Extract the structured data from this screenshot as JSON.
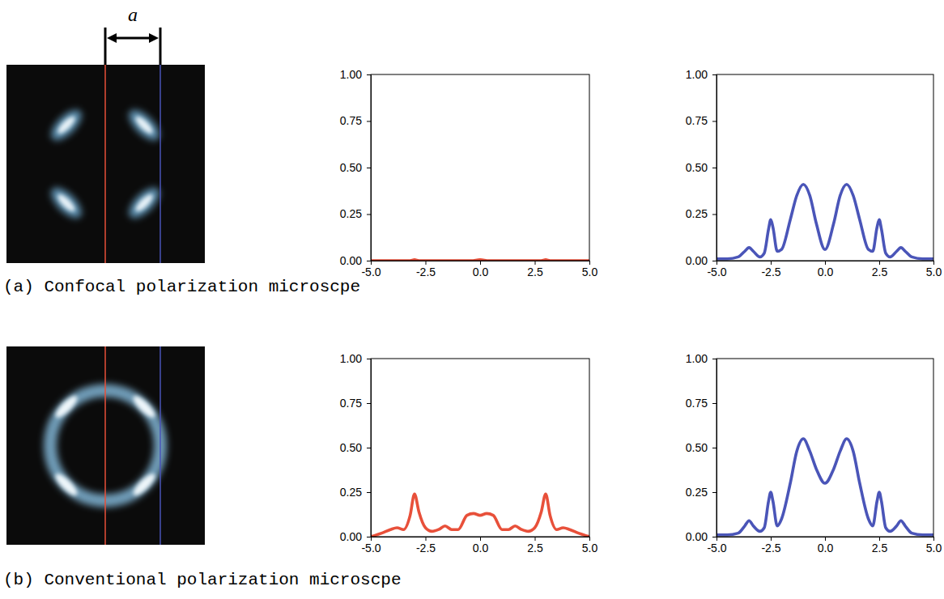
{
  "dimension_label": "a",
  "captions": [
    "(a) Confocal polarization microscpe",
    "(b) Conventional polarization microscpe"
  ],
  "chart_data": [
    {
      "type": "line",
      "x": [
        -5,
        -4,
        -3.2,
        -3,
        -2.8,
        -2,
        -0.4,
        0,
        0.4,
        2,
        2.8,
        3,
        3.2,
        4,
        5
      ],
      "series": [
        {
          "color": "#e8503a",
          "values": [
            0,
            0,
            0,
            0.005,
            0,
            0,
            0,
            0.005,
            0,
            0,
            0,
            0.005,
            0,
            0,
            0
          ]
        }
      ],
      "xlim": [
        -5,
        5
      ],
      "xticks": [
        {
          "value": -5,
          "label": "-5.0"
        },
        {
          "value": -2.5,
          "label": "-2.5"
        },
        {
          "value": 0,
          "label": "0.0"
        },
        {
          "value": 2.5,
          "label": "2.5"
        },
        {
          "value": 5,
          "label": "5.0"
        }
      ],
      "ylim": [
        0,
        1
      ],
      "yticks": [
        {
          "value": 0,
          "label": "0.00"
        },
        {
          "value": 0.25,
          "label": "0.25"
        },
        {
          "value": 0.5,
          "label": "0.50"
        },
        {
          "value": 0.75,
          "label": "0.75"
        },
        {
          "value": 1,
          "label": "1.00"
        }
      ],
      "grid": false
    },
    {
      "type": "line",
      "x": [
        -5,
        -4.5,
        -4,
        -3.7,
        -3.5,
        -3.3,
        -3,
        -2.8,
        -2.6,
        -2.5,
        -2.4,
        -2.2,
        -2,
        -1.6,
        -1.3,
        -1,
        -0.7,
        -0.4,
        0,
        0.4,
        0.7,
        1,
        1.3,
        1.6,
        2,
        2.2,
        2.4,
        2.5,
        2.6,
        2.8,
        3,
        3.3,
        3.5,
        3.7,
        4,
        4.5,
        5
      ],
      "series": [
        {
          "color": "#4a55b8",
          "values": [
            0.01,
            0.01,
            0.02,
            0.05,
            0.07,
            0.05,
            0.02,
            0.04,
            0.17,
            0.22,
            0.18,
            0.05,
            0.06,
            0.22,
            0.35,
            0.41,
            0.35,
            0.2,
            0.06,
            0.2,
            0.35,
            0.41,
            0.35,
            0.22,
            0.06,
            0.05,
            0.18,
            0.22,
            0.17,
            0.04,
            0.02,
            0.05,
            0.07,
            0.05,
            0.02,
            0.01,
            0.01
          ]
        }
      ],
      "xlim": [
        -5,
        5
      ],
      "xticks": [
        {
          "value": -5,
          "label": "-5.0"
        },
        {
          "value": -2.5,
          "label": "-2.5"
        },
        {
          "value": 0,
          "label": "0.0"
        },
        {
          "value": 2.5,
          "label": "2.5"
        },
        {
          "value": 5,
          "label": "5.0"
        }
      ],
      "ylim": [
        0,
        1
      ],
      "yticks": [
        {
          "value": 0,
          "label": "0.00"
        },
        {
          "value": 0.25,
          "label": "0.25"
        },
        {
          "value": 0.5,
          "label": "0.50"
        },
        {
          "value": 0.75,
          "label": "0.75"
        },
        {
          "value": 1,
          "label": "1.00"
        }
      ],
      "grid": false
    },
    {
      "type": "line",
      "x": [
        -5,
        -4.5,
        -4.1,
        -3.8,
        -3.5,
        -3.2,
        -3,
        -2.8,
        -2.5,
        -2.2,
        -1.9,
        -1.6,
        -1.3,
        -1,
        -0.6,
        -0.3,
        0,
        0.3,
        0.6,
        1,
        1.3,
        1.6,
        1.9,
        2.2,
        2.5,
        2.8,
        3,
        3.2,
        3.5,
        3.8,
        4.1,
        4.5,
        5
      ],
      "series": [
        {
          "color": "#e8503a",
          "values": [
            0,
            0.02,
            0.04,
            0.05,
            0.04,
            0.12,
            0.24,
            0.14,
            0.05,
            0.03,
            0.04,
            0.06,
            0.04,
            0.04,
            0.12,
            0.13,
            0.12,
            0.13,
            0.12,
            0.04,
            0.04,
            0.06,
            0.04,
            0.03,
            0.05,
            0.14,
            0.24,
            0.12,
            0.04,
            0.05,
            0.04,
            0.02,
            0
          ]
        }
      ],
      "xlim": [
        -5,
        5
      ],
      "xticks": [
        {
          "value": -5,
          "label": "-5.0"
        },
        {
          "value": -2.5,
          "label": "-2.5"
        },
        {
          "value": 0,
          "label": "0.0"
        },
        {
          "value": 2.5,
          "label": "2.5"
        },
        {
          "value": 5,
          "label": "5.0"
        }
      ],
      "ylim": [
        0,
        1
      ],
      "yticks": [
        {
          "value": 0,
          "label": "0.00"
        },
        {
          "value": 0.25,
          "label": "0.25"
        },
        {
          "value": 0.5,
          "label": "0.50"
        },
        {
          "value": 0.75,
          "label": "0.75"
        },
        {
          "value": 1,
          "label": "1.00"
        }
      ],
      "grid": false
    },
    {
      "type": "line",
      "x": [
        -5,
        -4.5,
        -4,
        -3.7,
        -3.5,
        -3.3,
        -3,
        -2.8,
        -2.6,
        -2.5,
        -2.4,
        -2.2,
        -2,
        -1.6,
        -1.3,
        -1,
        -0.7,
        -0.4,
        0,
        0.4,
        0.7,
        1,
        1.3,
        1.6,
        2,
        2.2,
        2.4,
        2.5,
        2.6,
        2.8,
        3,
        3.3,
        3.5,
        3.7,
        4,
        4.5,
        5
      ],
      "series": [
        {
          "color": "#4a55b8",
          "values": [
            0.01,
            0.01,
            0.02,
            0.06,
            0.09,
            0.06,
            0.03,
            0.05,
            0.2,
            0.25,
            0.2,
            0.06,
            0.1,
            0.3,
            0.48,
            0.55,
            0.48,
            0.38,
            0.3,
            0.38,
            0.48,
            0.55,
            0.48,
            0.3,
            0.1,
            0.06,
            0.2,
            0.25,
            0.2,
            0.05,
            0.03,
            0.06,
            0.09,
            0.06,
            0.02,
            0.01,
            0.01
          ]
        }
      ],
      "xlim": [
        -5,
        5
      ],
      "xticks": [
        {
          "value": -5,
          "label": "-5.0"
        },
        {
          "value": -2.5,
          "label": "-2.5"
        },
        {
          "value": 0,
          "label": "0.0"
        },
        {
          "value": 2.5,
          "label": "2.5"
        },
        {
          "value": 5,
          "label": "5.0"
        }
      ],
      "ylim": [
        0,
        1
      ],
      "yticks": [
        {
          "value": 0,
          "label": "0.00"
        },
        {
          "value": 0.25,
          "label": "0.25"
        },
        {
          "value": 0.5,
          "label": "0.50"
        },
        {
          "value": 0.75,
          "label": "0.75"
        },
        {
          "value": 1,
          "label": "1.00"
        }
      ],
      "grid": false
    }
  ]
}
